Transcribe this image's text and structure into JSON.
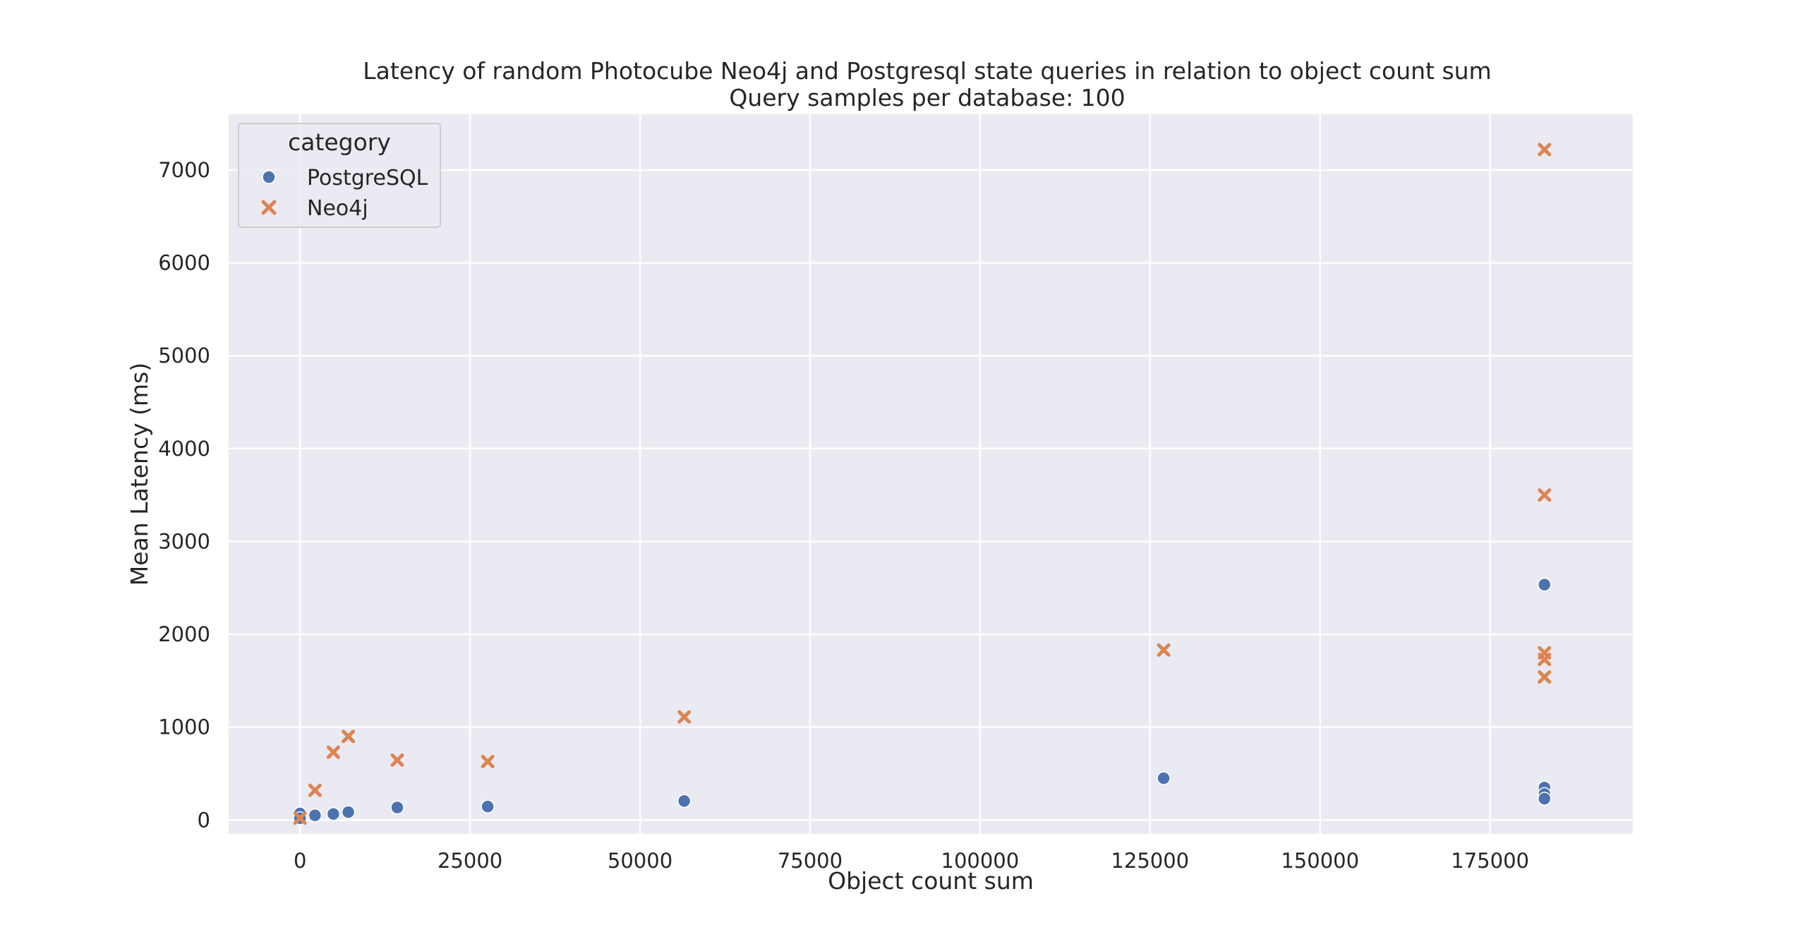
{
  "chart_data": {
    "type": "scatter",
    "title": "Latency of random Photocube Neo4j and Postgresql state queries in relation to object count sum",
    "subtitle": "Query samples per database: 100",
    "xlabel": "Object count sum",
    "ylabel": "Mean Latency (ms)",
    "xlim": [
      -10500,
      196000
    ],
    "ylim": [
      -150,
      7600
    ],
    "xticks": [
      0,
      25000,
      50000,
      75000,
      100000,
      125000,
      150000,
      175000
    ],
    "yticks": [
      0,
      1000,
      2000,
      3000,
      4000,
      5000,
      6000,
      7000
    ],
    "grid": true,
    "background": "#eaeaf2",
    "legend": {
      "title": "category",
      "placement": "top-left"
    },
    "series": [
      {
        "name": "PostgreSQL",
        "marker": "circle",
        "color": "#4c72b0",
        "points": [
          [
            0,
            70
          ],
          [
            0,
            20
          ],
          [
            2200,
            50
          ],
          [
            4900,
            65
          ],
          [
            7100,
            85
          ],
          [
            14300,
            135
          ],
          [
            27600,
            145
          ],
          [
            56500,
            205
          ],
          [
            127000,
            450
          ],
          [
            183000,
            2535
          ],
          [
            183000,
            350
          ],
          [
            183000,
            280
          ],
          [
            183000,
            230
          ]
        ]
      },
      {
        "name": "Neo4j",
        "marker": "x",
        "color": "#dd8452",
        "points": [
          [
            0,
            20
          ],
          [
            2200,
            320
          ],
          [
            4900,
            730
          ],
          [
            7100,
            900
          ],
          [
            14300,
            645
          ],
          [
            27600,
            630
          ],
          [
            56500,
            1110
          ],
          [
            127000,
            1830
          ],
          [
            183000,
            7220
          ],
          [
            183000,
            3500
          ],
          [
            183000,
            1800
          ],
          [
            183000,
            1730
          ],
          [
            183000,
            1540
          ]
        ]
      }
    ]
  }
}
